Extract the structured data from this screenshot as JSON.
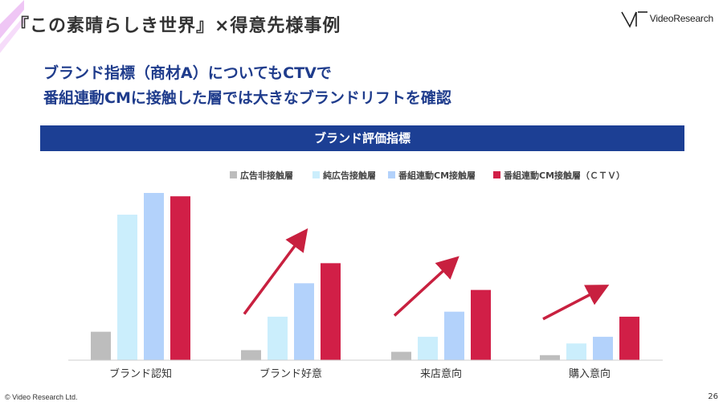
{
  "page": {
    "title": "『この素晴らしき世界』×得意先様事例",
    "logo_text": "VideoResearch",
    "headline_line1": "ブランド指標（商材A）についてもCTVで",
    "headline_line2": "番組連動CMに接触した層では大きなブランドリフトを確認",
    "banner": "ブランド評価指標",
    "copyright": "© Video Research Ltd.",
    "page_number": "26"
  },
  "colors": {
    "headline": "#1f3c8c",
    "banner": "#1c3f94",
    "arrow": "#c8203f",
    "ribbon": "#e9b3f2"
  },
  "chart_data": {
    "type": "bar",
    "categories": [
      "ブランド認知",
      "ブランド好意",
      "来店意向",
      "購入意向"
    ],
    "series": [
      {
        "name": "広告非接触層",
        "color": "#bdbdbd",
        "values": [
          17,
          6,
          5,
          3
        ]
      },
      {
        "name": "純広告接触層",
        "color": "#cbeefc",
        "values": [
          87,
          26,
          14,
          10
        ]
      },
      {
        "name": "番組連動CM接触層",
        "color": "#b3d2fb",
        "values": [
          100,
          46,
          29,
          14
        ]
      },
      {
        "name": "番組連動CM接触層（ＣＴＶ）",
        "color": "#d11f47",
        "values": [
          98,
          58,
          42,
          26
        ]
      }
    ],
    "ylim": [
      0,
      100
    ],
    "grid": false,
    "legend": "top-right",
    "annotations": [
      "arrow-up-ブランド好意",
      "arrow-up-来店意向",
      "arrow-up-購入意向"
    ]
  }
}
